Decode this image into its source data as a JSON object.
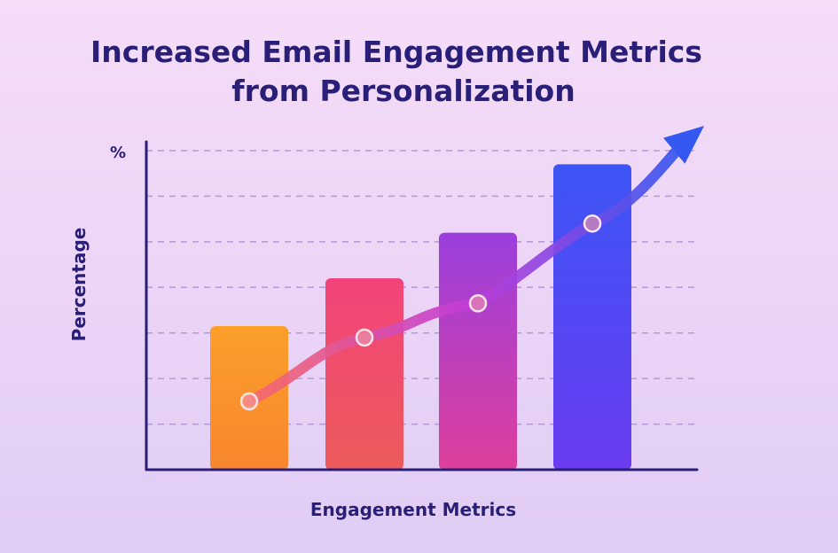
{
  "chart_data": {
    "type": "bar",
    "title_lines": [
      "Increased Email Engagement Metrics",
      "from Personalization"
    ],
    "xlabel": "Engagement Metrics",
    "ylabel": "Percentage",
    "y_unit": "%",
    "ylim": [
      0,
      7
    ],
    "grid": "dashed horizontal",
    "legend": "none",
    "values": [
      3.15,
      4.2,
      5.2,
      6.7
    ],
    "trend_points": [
      1.5,
      2.9,
      3.65,
      5.4
    ],
    "trend_arrow": "up-right",
    "colors": {
      "text": "#2a1f78",
      "axis": "#2a1f78",
      "grid": "#b39ad6",
      "marker_fill": "#f4a0a0",
      "marker_stroke": "#fde3e8",
      "bar_gradients": [
        [
          "#fb9f2a",
          "#f8862f"
        ],
        [
          "#f2447a",
          "#ec5a5a"
        ],
        [
          "#9b3fde",
          "#de3f9c"
        ],
        [
          "#3c55f5",
          "#6b3cf2"
        ]
      ],
      "trend_gradient": [
        "#f66a6a",
        "#c33cd8",
        "#3458f0"
      ]
    }
  }
}
